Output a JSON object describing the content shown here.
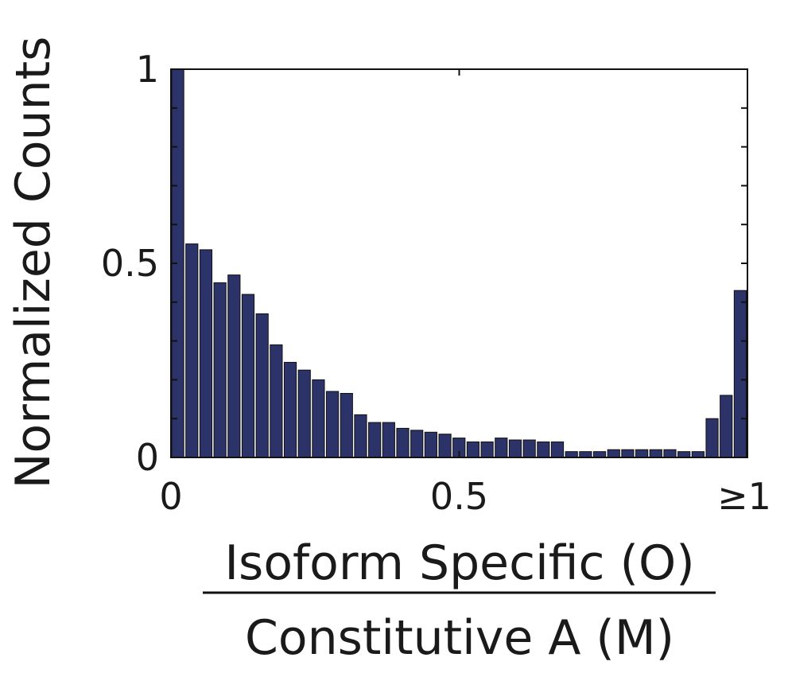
{
  "chart_data": {
    "type": "bar",
    "title": "",
    "ylabel": "Normalized Counts",
    "xlabel_numerator": "Isoform Specific (O)",
    "xlabel_denominator": "Constitutive A (M)",
    "x_tick_labels": [
      "0",
      "0.5",
      "≥1"
    ],
    "x_ticks": [
      0,
      0.5,
      1
    ],
    "y_tick_labels": [
      "0",
      "0.5",
      "1"
    ],
    "y_ticks": [
      0,
      0.5,
      1
    ],
    "xlim": [
      0,
      1
    ],
    "ylim": [
      0,
      1
    ],
    "bin_width": 0.025,
    "bar_color": "#2b3369",
    "grid": false,
    "values": [
      1.0,
      0.55,
      0.535,
      0.45,
      0.47,
      0.42,
      0.37,
      0.29,
      0.245,
      0.225,
      0.2,
      0.17,
      0.165,
      0.11,
      0.09,
      0.09,
      0.075,
      0.07,
      0.065,
      0.06,
      0.05,
      0.04,
      0.04,
      0.05,
      0.045,
      0.045,
      0.04,
      0.04,
      0.015,
      0.015,
      0.015,
      0.02,
      0.02,
      0.02,
      0.02,
      0.02,
      0.015,
      0.015,
      0.1,
      0.16,
      0.43
    ]
  }
}
